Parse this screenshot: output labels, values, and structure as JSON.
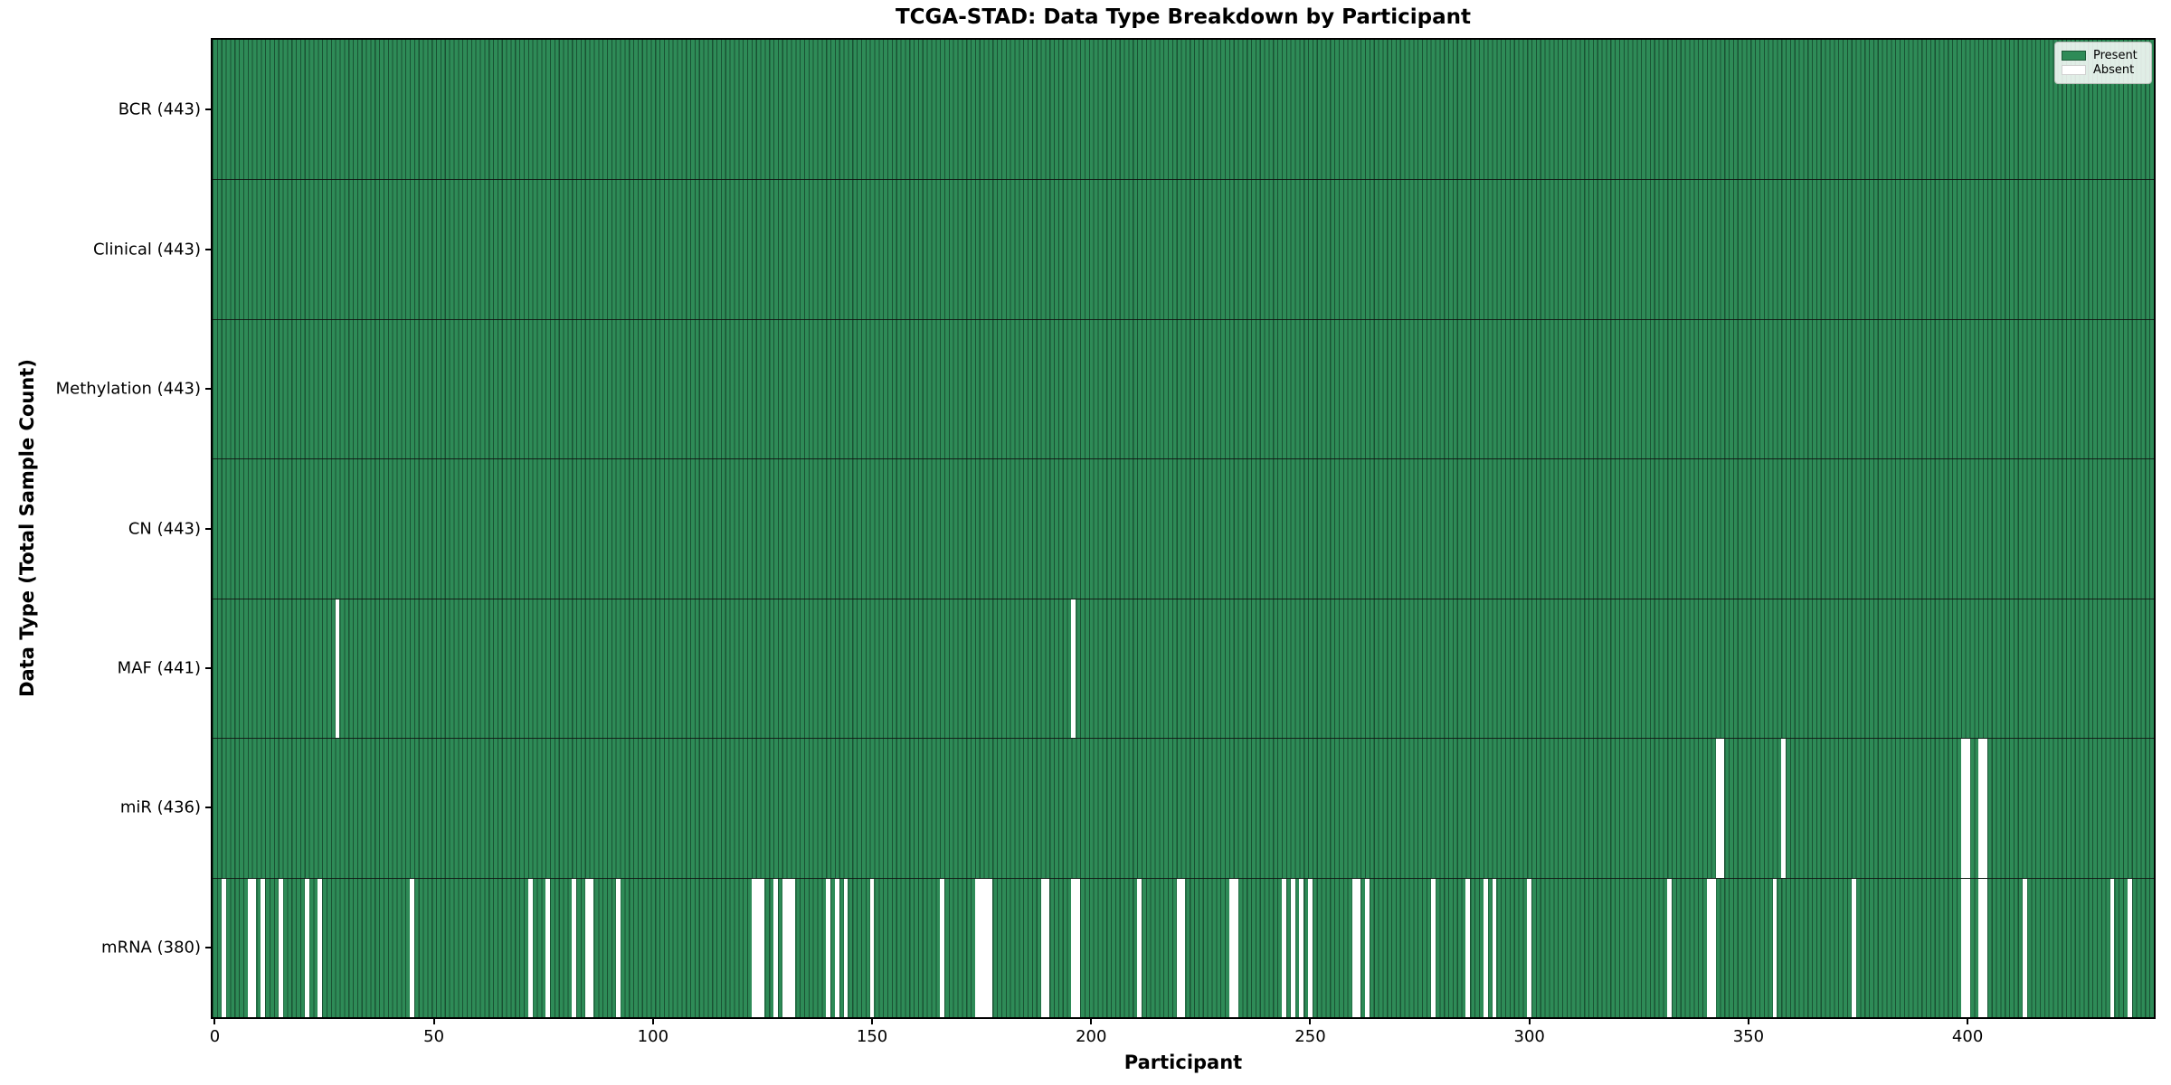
{
  "title": "TCGA-STAD: Data Type Breakdown by Participant",
  "xlabel": "Participant",
  "ylabel": "Data Type (Total Sample Count)",
  "legend": {
    "present_label": "Present",
    "absent_label": "Absent",
    "position": "upper right"
  },
  "colors": {
    "present": "#2e8b57",
    "absent": "#ffffff",
    "bar_edge": "#14331f",
    "row_divider": "#0f0f0f",
    "plot_border": "#000000"
  },
  "chart_data": {
    "type": "heatmap",
    "subtype": "presence-absence-matrix",
    "n_participants": 443,
    "x_range": [
      0,
      443
    ],
    "x_ticks": [
      0,
      50,
      100,
      150,
      200,
      250,
      300,
      350,
      400
    ],
    "grid": false,
    "legend_position": "upper right",
    "rows": [
      {
        "name": "BCR",
        "label": "BCR (443)",
        "total": 443,
        "absent_participants": []
      },
      {
        "name": "Clinical",
        "label": "Clinical (443)",
        "total": 443,
        "absent_participants": []
      },
      {
        "name": "Methylation",
        "label": "Methylation (443)",
        "total": 443,
        "absent_participants": []
      },
      {
        "name": "CN",
        "label": "CN (443)",
        "total": 443,
        "absent_participants": []
      },
      {
        "name": "MAF",
        "label": "MAF (441)",
        "total": 441,
        "absent_participants": [
          28,
          196
        ]
      },
      {
        "name": "miR",
        "label": "miR (436)",
        "total": 436,
        "absent_participants": [
          343,
          344,
          358,
          399,
          400,
          403,
          404
        ]
      },
      {
        "name": "mRNA",
        "label": "mRNA (380)",
        "total": 380,
        "absent_participants": [
          2,
          8,
          9,
          11,
          15,
          21,
          24,
          45,
          72,
          76,
          82,
          85,
          86,
          92,
          123,
          124,
          125,
          128,
          130,
          131,
          132,
          140,
          142,
          144,
          150,
          166,
          174,
          175,
          176,
          177,
          189,
          190,
          196,
          197,
          211,
          220,
          221,
          232,
          233,
          244,
          246,
          248,
          250,
          260,
          261,
          263,
          278,
          286,
          290,
          292,
          300,
          332,
          341,
          342,
          356,
          374,
          399,
          400,
          403,
          404,
          413,
          433,
          437
        ]
      }
    ]
  }
}
